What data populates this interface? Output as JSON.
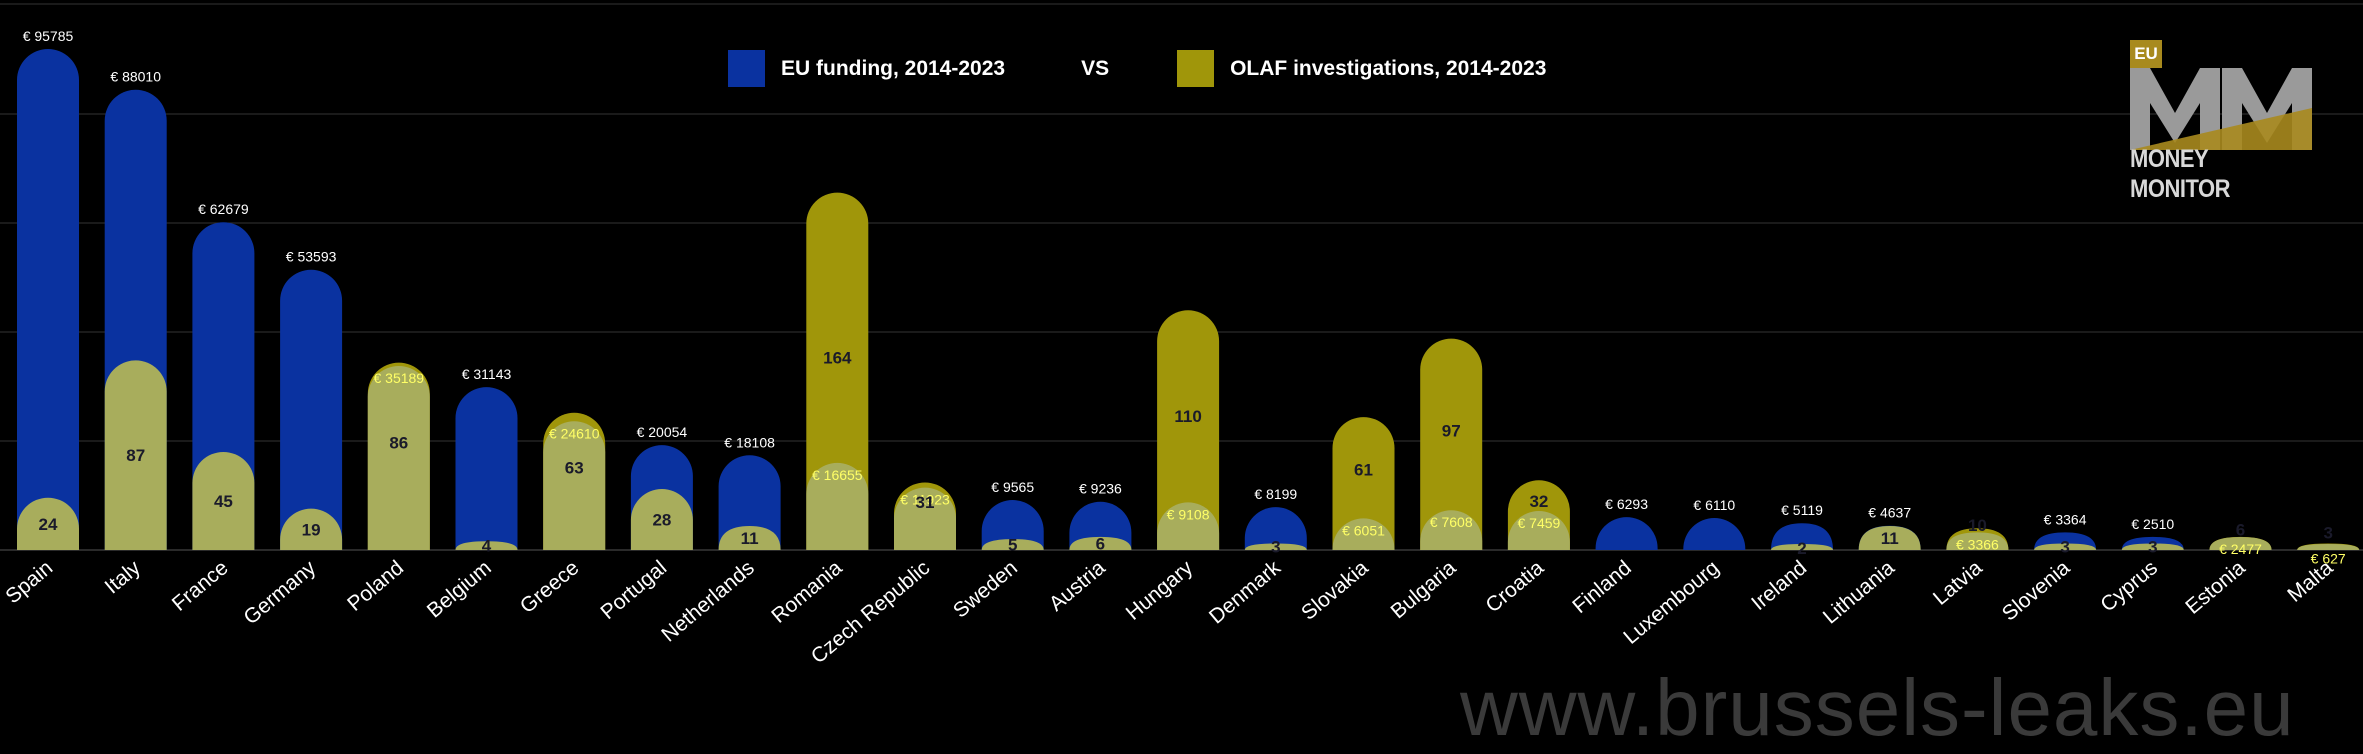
{
  "legend": {
    "funding_label": "EU funding, 2014-2023",
    "vs_label": "VS",
    "investigations_label": "OLAF investigations, 2014-2023"
  },
  "logo": {
    "badge": "EU",
    "name": "MONEY MONITOR"
  },
  "watermark": "www.brussels-leaks.eu",
  "colors": {
    "funding": "#0a32a0",
    "investigations_light": "#a8ad5c",
    "investigations_dark": "#a0960a",
    "euro_label_on_olive": "#ffff66",
    "grid": "#333333"
  },
  "chart_data": {
    "type": "bar",
    "title": "",
    "xlabel": "",
    "ylabel": "",
    "categories": [
      "Spain",
      "Italy",
      "France",
      "Germany",
      "Poland",
      "Belgium",
      "Greece",
      "Portugal",
      "Netherlands",
      "Romania",
      "Czech Republic",
      "Sweden",
      "Austria",
      "Hungary",
      "Denmark",
      "Slovakia",
      "Bulgaria",
      "Croatia",
      "Finland",
      "Luxembourg",
      "Ireland",
      "Lithuania",
      "Latvia",
      "Slovenia",
      "Cyprus",
      "Estonia",
      "Malta"
    ],
    "series": [
      {
        "name": "EU funding, 2014-2023",
        "values": [
          95785,
          88010,
          62679,
          53593,
          35189,
          31143,
          24610,
          20054,
          18108,
          16655,
          11923,
          9565,
          9236,
          9108,
          8199,
          6051,
          7608,
          7459,
          6293,
          6110,
          5119,
          4637,
          3366,
          3364,
          2510,
          2477,
          627
        ],
        "labels": [
          "€ 95785",
          "€ 88010",
          "€ 62679",
          "€ 53593",
          "€ 35189",
          "€ 31143",
          "€ 24610",
          "€ 20054",
          "€ 18108",
          "€ 16655",
          "€ 11923",
          "€ 9565",
          "€ 9236",
          "€ 9108",
          "€ 8199",
          "€ 6051",
          "€ 7608",
          "€ 7459",
          "€ 6293",
          "€ 6110",
          "€ 5119",
          "€ 4637",
          "€ 3366",
          "€ 3364",
          "€ 2510",
          "€ 2477",
          "€ 627"
        ]
      },
      {
        "name": "OLAF investigations, 2014-2023",
        "values": [
          24,
          87,
          45,
          19,
          86,
          4,
          63,
          28,
          11,
          164,
          31,
          5,
          6,
          110,
          3,
          61,
          97,
          32,
          0,
          0,
          2,
          11,
          10,
          3,
          3,
          6,
          3
        ],
        "labels": [
          "24",
          "87",
          "45",
          "19",
          "86",
          "4",
          "63",
          "28",
          "11",
          "164",
          "31",
          "5",
          "6",
          "110",
          "3",
          "61",
          "97",
          "32",
          "",
          "",
          "2",
          "11",
          "10",
          "3",
          "3",
          "6",
          "3"
        ]
      }
    ],
    "ylim_funding": [
      0,
      100000
    ],
    "ylim_investigations": [
      0,
      240
    ],
    "grid": true
  }
}
